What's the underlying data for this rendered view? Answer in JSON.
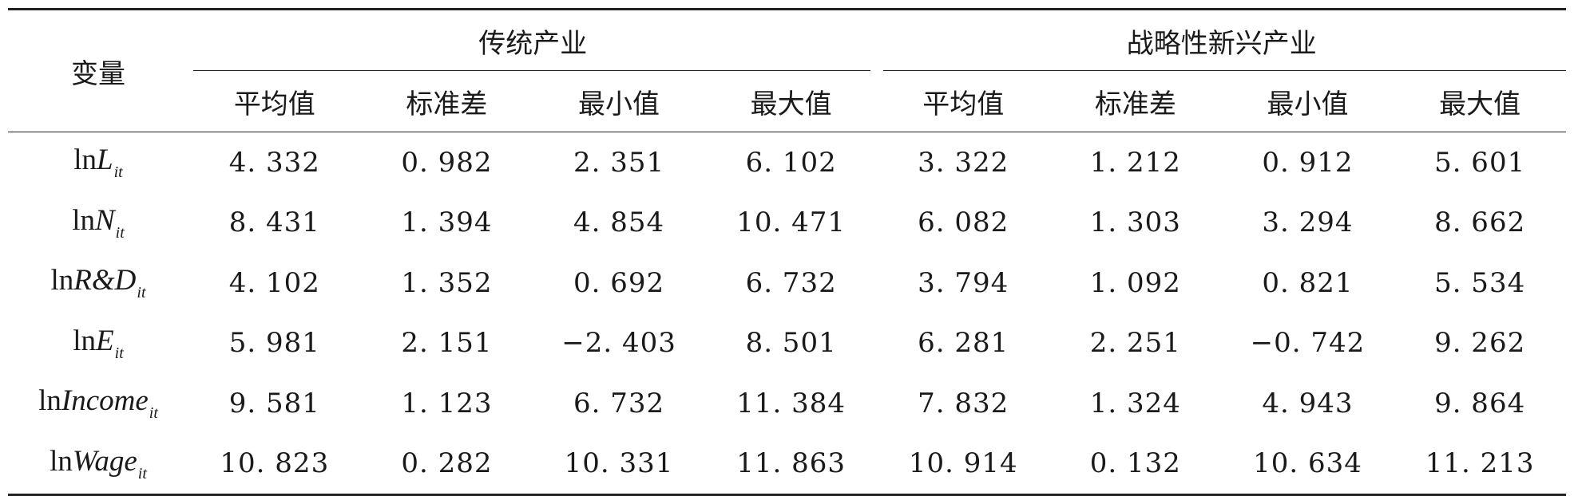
{
  "table": {
    "var_header": "变量",
    "groups": [
      "传统产业",
      "战略性新兴产业"
    ],
    "stats": [
      "平均值",
      "标准差",
      "最小值",
      "最大值"
    ],
    "rows": [
      {
        "prefix": "ln",
        "name": "L",
        "sub": "it",
        "values": [
          "4. 332",
          "0. 982",
          "2. 351",
          "6. 102",
          "3. 322",
          "1. 212",
          "0. 912",
          "5. 601"
        ]
      },
      {
        "prefix": "ln",
        "name": "N",
        "sub": "it",
        "values": [
          "8. 431",
          "1. 394",
          "4. 854",
          "10. 471",
          "6. 082",
          "1. 303",
          "3. 294",
          "8. 662"
        ]
      },
      {
        "prefix": "ln",
        "name": "R&D",
        "sub": "it",
        "values": [
          "4. 102",
          "1. 352",
          "0. 692",
          "6. 732",
          "3. 794",
          "1. 092",
          "0. 821",
          "5. 534"
        ]
      },
      {
        "prefix": "ln",
        "name": "E",
        "sub": "it",
        "values": [
          "5. 981",
          "2. 151",
          "−2. 403",
          "8. 501",
          "6. 281",
          "2. 251",
          "−0. 742",
          "9. 262"
        ]
      },
      {
        "prefix": "ln",
        "name": "Income",
        "sub": "it",
        "values": [
          "9. 581",
          "1. 123",
          "6. 732",
          "11. 384",
          "7. 832",
          "1. 324",
          "4. 943",
          "9. 864"
        ]
      },
      {
        "prefix": "ln",
        "name": "Wage",
        "sub": "it",
        "values": [
          "10. 823",
          "0. 282",
          "10. 331",
          "11. 863",
          "10. 914",
          "0. 132",
          "10. 634",
          "11. 213"
        ]
      }
    ]
  }
}
